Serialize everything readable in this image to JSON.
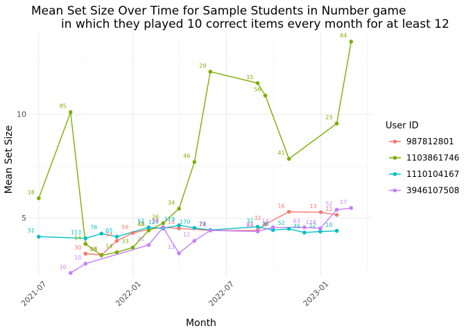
{
  "chart_data": {
    "type": "line",
    "title_line1": "Mean Set Size Over Time for Sample Students in Number game",
    "title_line2": "in which they played 10 correct items every month for at least 12",
    "xlabel": "Month",
    "ylabel": "Mean Set Size",
    "x_ticks": [
      "2021-07",
      "2022-01",
      "2022-07",
      "2023-01"
    ],
    "y_ticks": [
      5,
      10
    ],
    "xlim": [
      "2021-06-15",
      "2023-04-10"
    ],
    "ylim": [
      2.2,
      13.9
    ],
    "grid": true,
    "legend": {
      "title": "User ID",
      "position": "right"
    },
    "series": [
      {
        "name": "987812801",
        "color": "#F8766D",
        "points": [
          {
            "x": "2021-09-30",
            "y": 3.28,
            "label": "30"
          },
          {
            "x": "2021-10-31",
            "y": 3.22,
            "label": "66"
          },
          {
            "x": "2021-11-30",
            "y": 3.9,
            "label": "34"
          },
          {
            "x": "2021-12-31",
            "y": 4.28,
            "label": "56"
          },
          {
            "x": "2022-01-31",
            "y": 4.45,
            "label": "23"
          },
          {
            "x": "2022-02-28",
            "y": 4.55,
            "label": "26"
          },
          {
            "x": "2022-03-31",
            "y": 4.5,
            "label": "14"
          },
          {
            "x": "2022-05-31",
            "y": 4.4,
            "label": "24"
          },
          {
            "x": "2022-08-31",
            "y": 4.4,
            "label": "23"
          },
          {
            "x": "2022-09-15",
            "y": 4.7,
            "label": "32"
          },
          {
            "x": "2022-10-31",
            "y": 5.3,
            "label": "16"
          },
          {
            "x": "2023-01-01",
            "y": 5.28,
            "label": "13"
          },
          {
            "x": "2023-02-01",
            "y": 5.15,
            "label": "11"
          }
        ]
      },
      {
        "name": "1103861746",
        "color": "#7CAE00",
        "points": [
          {
            "x": "2021-07-01",
            "y": 5.95,
            "label": "18"
          },
          {
            "x": "2021-09-01",
            "y": 10.1,
            "label": "85"
          },
          {
            "x": "2021-09-30",
            "y": 3.75,
            "label": "14"
          },
          {
            "x": "2021-10-31",
            "y": 3.2,
            "label": "68"
          },
          {
            "x": "2021-11-30",
            "y": 3.35,
            "label": "14"
          },
          {
            "x": "2021-12-31",
            "y": 3.58,
            "label": "33"
          },
          {
            "x": "2022-01-31",
            "y": 4.4,
            "label": "48"
          },
          {
            "x": "2022-02-28",
            "y": 4.75,
            "label": "26"
          },
          {
            "x": "2022-03-31",
            "y": 5.45,
            "label": "34"
          },
          {
            "x": "2022-04-30",
            "y": 7.7,
            "label": "46"
          },
          {
            "x": "2022-05-31",
            "y": 12.05,
            "label": "29"
          },
          {
            "x": "2022-08-31",
            "y": 11.5,
            "label": "15"
          },
          {
            "x": "2022-09-15",
            "y": 10.9,
            "label": "56"
          },
          {
            "x": "2022-10-31",
            "y": 7.85,
            "label": "41"
          },
          {
            "x": "2023-02-01",
            "y": 9.55,
            "label": "23"
          },
          {
            "x": "2023-03-01",
            "y": 13.5,
            "label": "84"
          }
        ]
      },
      {
        "name": "1110104167",
        "color": "#00BFC4",
        "points": [
          {
            "x": "2021-07-01",
            "y": 4.1,
            "label": "31"
          },
          {
            "x": "2021-09-30",
            "y": 4.02,
            "label": "113"
          },
          {
            "x": "2021-10-31",
            "y": 4.25,
            "label": "78"
          },
          {
            "x": "2021-11-30",
            "y": 4.1,
            "label": "65"
          },
          {
            "x": "2022-01-31",
            "y": 4.55,
            "label": "52"
          },
          {
            "x": "2022-02-28",
            "y": 4.5,
            "label": "127"
          },
          {
            "x": "2022-03-31",
            "y": 4.65,
            "label": "119"
          },
          {
            "x": "2022-04-30",
            "y": 4.52,
            "label": "170"
          },
          {
            "x": "2022-05-31",
            "y": 4.42,
            "label": "71"
          },
          {
            "x": "2022-08-31",
            "y": 4.58,
            "label": "32"
          },
          {
            "x": "2022-09-30",
            "y": 4.42,
            "label": "26"
          },
          {
            "x": "2022-10-31",
            "y": 4.48,
            "label": "52"
          },
          {
            "x": "2022-11-30",
            "y": 4.3,
            "label": "46"
          },
          {
            "x": "2022-12-31",
            "y": 4.35,
            "label": "12"
          },
          {
            "x": "2023-02-01",
            "y": 4.38,
            "label": "10"
          }
        ]
      },
      {
        "name": "3946107508",
        "color": "#C77CFF",
        "points": [
          {
            "x": "2021-09-01",
            "y": 2.35,
            "label": "10"
          },
          {
            "x": "2021-09-30",
            "y": 2.8,
            "label": "10"
          },
          {
            "x": "2022-01-31",
            "y": 3.7,
            "label": "21"
          },
          {
            "x": "2022-02-28",
            "y": 4.55,
            "label": "13"
          },
          {
            "x": "2022-03-31",
            "y": 3.3,
            "label": "13"
          },
          {
            "x": "2022-04-30",
            "y": 3.9,
            "label": "12"
          },
          {
            "x": "2022-05-31",
            "y": 4.4,
            "label": "19"
          },
          {
            "x": "2022-08-31",
            "y": 4.35,
            "label": "84"
          },
          {
            "x": "2022-09-30",
            "y": 4.55,
            "label": "14"
          },
          {
            "x": "2022-11-30",
            "y": 4.55,
            "label": "63"
          },
          {
            "x": "2022-12-31",
            "y": 4.5,
            "label": "124"
          },
          {
            "x": "2023-02-01",
            "y": 5.4,
            "label": "52"
          },
          {
            "x": "2023-03-01",
            "y": 5.48,
            "label": "17"
          }
        ]
      }
    ]
  }
}
